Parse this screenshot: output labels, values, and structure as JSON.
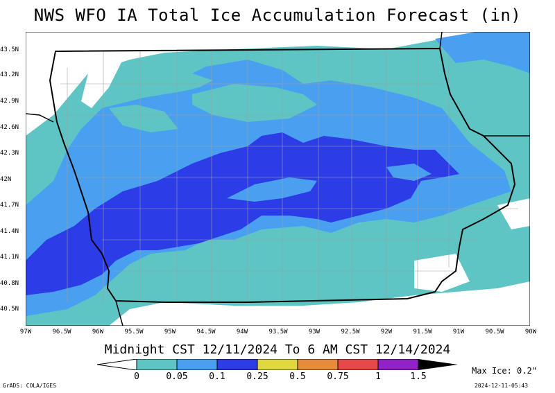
{
  "title": "NWS WFO IA Total Ice Accumulation Forecast (in)",
  "subtitle": "Midnight CST 12/11/2024 To 6 AM CST 12/14/2024",
  "max_ice": "Max Ice: 0.2\"",
  "credit": "GrADS: COLA/IGES",
  "timestamp": "2024-12-11-05:43",
  "lat_ticks": [
    "43.5N",
    "43.2N",
    "42.9N",
    "42.6N",
    "42.3N",
    "42N",
    "41.7N",
    "41.4N",
    "41.1N",
    "40.8N",
    "40.5N"
  ],
  "lon_ticks": [
    "97W",
    "96.5W",
    "96W",
    "95.5W",
    "95W",
    "94.5W",
    "94W",
    "93.5W",
    "93W",
    "92.5W",
    "92W",
    "91.5W",
    "91W",
    "90.5W",
    "90W"
  ],
  "legend": {
    "labels": [
      "0",
      "0.05",
      "0.1",
      "0.25",
      "0.5",
      "0.75",
      "1",
      "1.5"
    ],
    "colors": [
      "#5ec4c4",
      "#4aa0f0",
      "#2c3ce6",
      "#e0d83c",
      "#e88a3c",
      "#e84848",
      "#9022c8"
    ]
  },
  "colors": {
    "light": "#5ec4c4",
    "medium": "#4aa0f0",
    "heavy": "#2c3ce6",
    "county_lines": "#a0a0a0"
  }
}
